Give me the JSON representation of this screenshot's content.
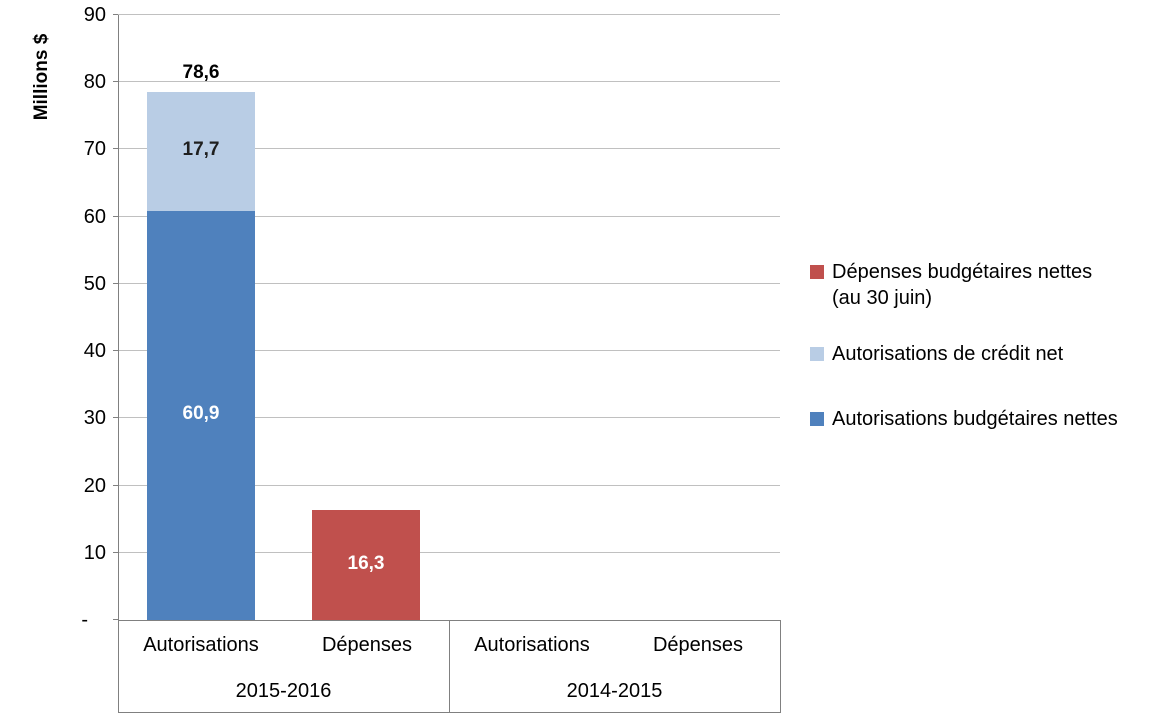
{
  "chart_data": {
    "type": "bar",
    "stacked": true,
    "title": "",
    "xlabel": "",
    "ylabel": "Millions $",
    "ylim": [
      0,
      90
    ],
    "ytick_step": 10,
    "grid": true,
    "legend_position": "right",
    "y_ticks": [
      {
        "value": 90,
        "label": "90"
      },
      {
        "value": 80,
        "label": "80"
      },
      {
        "value": 70,
        "label": "70"
      },
      {
        "value": 60,
        "label": "60"
      },
      {
        "value": 50,
        "label": "50"
      },
      {
        "value": 40,
        "label": "40"
      },
      {
        "value": 30,
        "label": "30"
      },
      {
        "value": 20,
        "label": "20"
      },
      {
        "value": 10,
        "label": "10"
      },
      {
        "value": 0,
        "label": "-"
      }
    ],
    "groups": [
      {
        "label": "2015-2016",
        "categories": [
          {
            "label": "Autorisations",
            "total": 78.6,
            "total_label": "78,6",
            "segments": [
              {
                "series": "Autorisations budgétaires nettes",
                "value": 60.9,
                "label": "60,9",
                "color": "#4F81BD",
                "label_color": "#FFFFFF"
              },
              {
                "series": "Autorisations de crédit net",
                "value": 17.7,
                "label": "17,7",
                "color": "#B9CDE5",
                "label_color": "#1F1F1F"
              }
            ]
          },
          {
            "label": "Dépenses",
            "segments": [
              {
                "series": "Dépenses budgétaires nettes (au 30 juin)",
                "value": 16.3,
                "label": "16,3",
                "color": "#C0504D",
                "label_color": "#FFFFFF"
              }
            ]
          }
        ]
      },
      {
        "label": "2014-2015",
        "categories": [
          {
            "label": "Autorisations",
            "segments": []
          },
          {
            "label": "Dépenses",
            "segments": []
          }
        ]
      }
    ],
    "legend": [
      {
        "label": "Dépenses budgétaires nettes\n(au 30 juin)",
        "color": "#C0504D"
      },
      {
        "label": "Autorisations de crédit net",
        "color": "#B9CDE5"
      },
      {
        "label": "Autorisations budgétaires nettes",
        "color": "#4F81BD"
      }
    ],
    "colors": {
      "grid": "#C0C0C0",
      "axis": "#808080",
      "text": "#000000"
    }
  }
}
